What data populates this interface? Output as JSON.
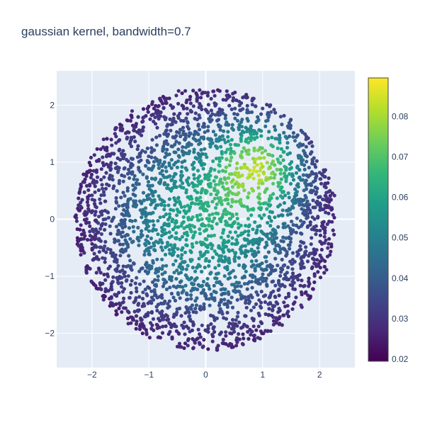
{
  "chart_data": {
    "type": "scatter",
    "title": "gaussian kernel, bandwidth=0.7",
    "xlabel": "",
    "ylabel": "",
    "xlim": [
      -2.62,
      2.62
    ],
    "ylim": [
      -2.6,
      2.6
    ],
    "x_ticks": [
      -2,
      -1,
      0,
      1,
      2
    ],
    "y_ticks": [
      -2,
      -1,
      0,
      1,
      2
    ],
    "x_tick_labels": [
      "−2",
      "−1",
      "0",
      "1",
      "2"
    ],
    "y_tick_labels": [
      "−2",
      "−1",
      "0",
      "1",
      "2"
    ],
    "grid": true,
    "legend": "none",
    "points": {
      "distribution": "uniform disk",
      "center": [
        0,
        0
      ],
      "radius": 2.3,
      "count": 3000,
      "color_value": "kernel density estimate, peak near (0.95, 0.95)"
    },
    "colorbar": {
      "colorscale": "Viridis",
      "range": [
        0.0195,
        0.0895
      ],
      "ticks": [
        0.02,
        0.03,
        0.04,
        0.05,
        0.06,
        0.07,
        0.08
      ],
      "tick_labels": [
        "0.02",
        "0.03",
        "0.04",
        "0.05",
        "0.06",
        "0.07",
        "0.08"
      ]
    }
  },
  "colors": {
    "plot_background": "#e5ecf6",
    "grid": "#ffffff",
    "text": "#2a3f5f",
    "colorscale": [
      "#440154",
      "#482878",
      "#3e4989",
      "#31688e",
      "#26828e",
      "#1f9e89",
      "#35b779",
      "#6ece58",
      "#b5de2b",
      "#fde725"
    ]
  }
}
